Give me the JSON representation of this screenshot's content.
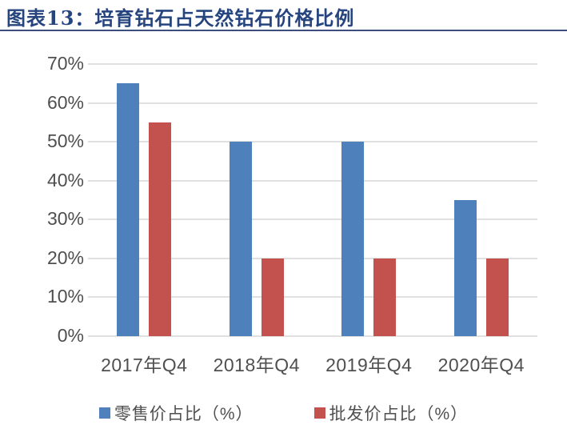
{
  "header": {
    "title": "图表13：培育钻石占天然钻石价格比例",
    "title_color": "#26457f",
    "rule_color": "#3d4d80"
  },
  "chart_data": {
    "type": "bar",
    "title": "培育钻石占天然钻石价格比例",
    "categories": [
      "2017年Q4",
      "2018年Q4",
      "2019年Q4",
      "2020年Q4"
    ],
    "series": [
      {
        "name": "零售价占比（%）",
        "color": "#4e80bc",
        "values": [
          65,
          50,
          50,
          35
        ]
      },
      {
        "name": "批发价占比（%）",
        "color": "#c3514d",
        "values": [
          55,
          20,
          20,
          20
        ]
      }
    ],
    "xlabel": "",
    "ylabel": "",
    "ylim": [
      0,
      70
    ],
    "yticks": [
      0,
      10,
      20,
      30,
      40,
      50,
      60,
      70
    ],
    "ytick_suffix": "%",
    "grid": true,
    "gridline_color": "#e0e0e0",
    "axis_label_color": "#4f4f4f",
    "legend_position": "bottom"
  }
}
